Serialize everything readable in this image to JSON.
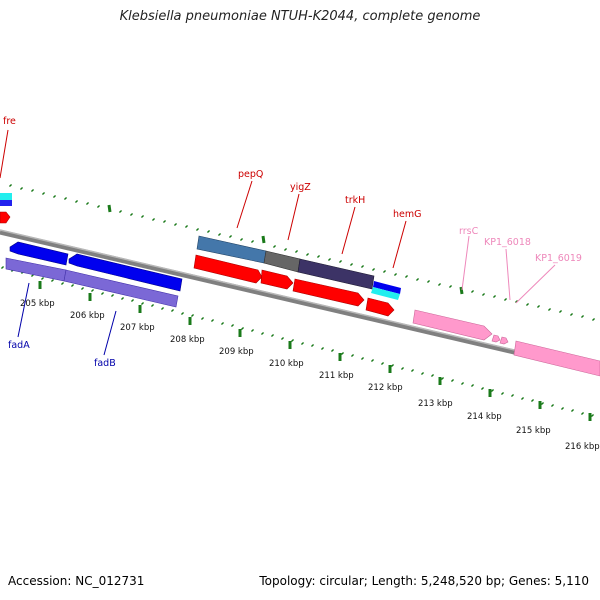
{
  "title": "Klebsiella pneumoniae NTUH-K2044, complete genome",
  "footer": {
    "accession": "Accession: NC_012731",
    "info": "Topology: circular; Length: 5,248,520 bp; Genes: 5,110"
  },
  "ticks": [
    "205 kbp",
    "206 kbp",
    "207 kbp",
    "208 kbp",
    "209 kbp",
    "210 kbp",
    "211 kbp",
    "212 kbp",
    "213 kbp",
    "214 kbp",
    "215 kbp",
    "216 kbp"
  ],
  "gene_labels": {
    "fre": "fre",
    "pepQ": "pepQ",
    "yigZ": "yigZ",
    "trkH": "trkH",
    "hemG": "hemG",
    "rrsC": "rrsC",
    "KP1_6018": "KP1_6018",
    "KP1_6019": "KP1_6019",
    "fadA": "fadA",
    "fadB": "fadB"
  },
  "colors": {
    "forward_label": "#cc0000",
    "reverse_label": "#0000aa",
    "rna_label": "#ee88bb",
    "tick": "#1a7a1a",
    "backbone": "#808080"
  }
}
